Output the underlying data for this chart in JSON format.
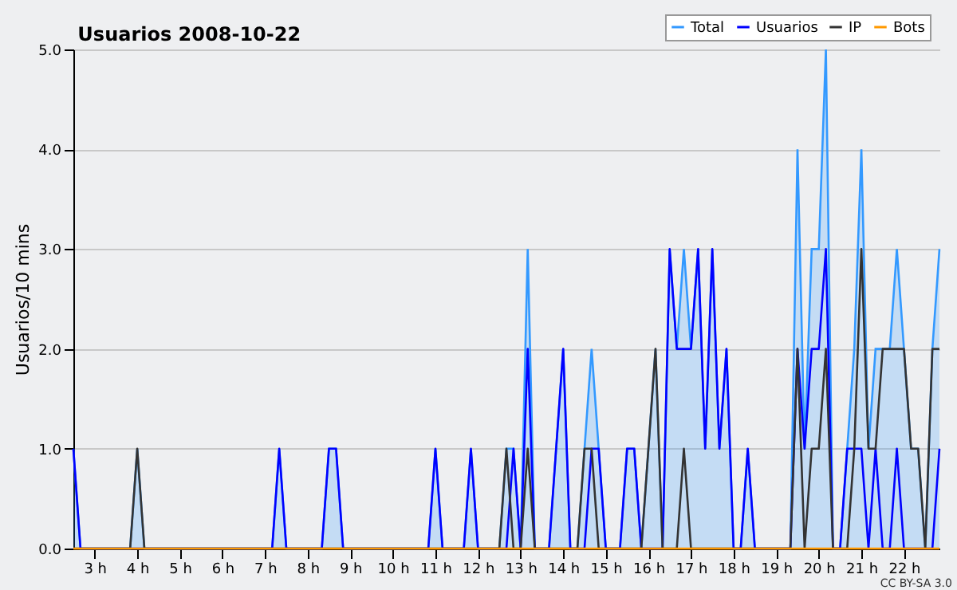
{
  "chart_data": {
    "type": "line",
    "title": "Usuarios 2008-10-22",
    "ylabel": "Usuarios/10 mins",
    "annotations": [
      "CC BY-SA 3.0"
    ],
    "xlim": [
      2.5,
      22.833
    ],
    "xticks": [
      {
        "value": 3,
        "label": "3 h"
      },
      {
        "value": 4,
        "label": "4 h"
      },
      {
        "value": 5,
        "label": "5 h"
      },
      {
        "value": 6,
        "label": "6 h"
      },
      {
        "value": 7,
        "label": "7 h"
      },
      {
        "value": 8,
        "label": "8 h"
      },
      {
        "value": 9,
        "label": "9 h"
      },
      {
        "value": 10,
        "label": "10 h"
      },
      {
        "value": 11,
        "label": "11 h"
      },
      {
        "value": 12,
        "label": "12 h"
      },
      {
        "value": 13,
        "label": "13 h"
      },
      {
        "value": 14,
        "label": "14 h"
      },
      {
        "value": 15,
        "label": "15 h"
      },
      {
        "value": 16,
        "label": "16 h"
      },
      {
        "value": 17,
        "label": "17 h"
      },
      {
        "value": 18,
        "label": "18 h"
      },
      {
        "value": 19,
        "label": "19 h"
      },
      {
        "value": 20,
        "label": "20 h"
      },
      {
        "value": 21,
        "label": "21 h"
      },
      {
        "value": 22,
        "label": "22 h"
      }
    ],
    "ylim": [
      0,
      5
    ],
    "yticks": [
      {
        "value": 0,
        "label": "0.0"
      },
      {
        "value": 1,
        "label": "1.0"
      },
      {
        "value": 2,
        "label": "2.0"
      },
      {
        "value": 3,
        "label": "3.0"
      },
      {
        "value": 4,
        "label": "4.0"
      },
      {
        "value": 5,
        "label": "5.0"
      }
    ],
    "grid": "y",
    "legend": "top right",
    "series": [
      {
        "name": "Total",
        "type": "area",
        "color": "#3399ff",
        "x": [
          2.5,
          2.667,
          3.833,
          4.0,
          4.167,
          7.167,
          7.333,
          7.5,
          8.333,
          8.5,
          8.667,
          8.833,
          10.833,
          11.0,
          11.167,
          11.667,
          11.833,
          12.0,
          12.5,
          12.667,
          12.833,
          13.0,
          13.167,
          13.333,
          13.667,
          14.0,
          14.167,
          14.333,
          14.5,
          14.667,
          14.833,
          15.0,
          15.333,
          15.5,
          15.667,
          15.833,
          16.167,
          16.333,
          16.5,
          16.667,
          16.833,
          17.0,
          17.167,
          17.333,
          17.5,
          17.667,
          17.833,
          18.0,
          18.167,
          18.333,
          18.5,
          19.333,
          19.5,
          19.667,
          19.833,
          20.0,
          20.167,
          20.333,
          20.5,
          20.667,
          20.833,
          21.0,
          21.167,
          21.333,
          21.5,
          21.667,
          21.833,
          22.0,
          22.167,
          22.333,
          22.5,
          22.667,
          22.833
        ],
        "values": [
          1,
          0,
          0,
          1,
          0,
          0,
          1,
          0,
          0,
          1,
          1,
          0,
          0,
          1,
          0,
          0,
          1,
          0,
          0,
          1,
          1,
          0,
          3,
          0,
          0,
          2,
          0,
          0,
          1,
          2,
          1,
          0,
          0,
          1,
          1,
          0,
          2,
          0,
          3,
          2,
          3,
          2,
          3,
          1,
          3,
          1,
          2,
          0,
          0,
          1,
          0,
          0,
          4,
          1,
          3,
          3,
          5,
          0,
          0,
          1,
          2,
          4,
          1,
          2,
          2,
          2,
          3,
          2,
          1,
          1,
          0,
          2,
          3
        ]
      },
      {
        "name": "Usuarios",
        "color": "#0000ff",
        "x": [
          2.5,
          2.667,
          7.167,
          7.333,
          7.5,
          8.333,
          8.5,
          8.667,
          8.833,
          10.833,
          11.0,
          11.167,
          11.667,
          11.833,
          12.0,
          12.667,
          12.833,
          13.0,
          13.167,
          13.333,
          13.667,
          14.0,
          14.167,
          14.5,
          14.667,
          14.833,
          15.0,
          15.333,
          15.5,
          15.667,
          15.833,
          16.333,
          16.5,
          16.667,
          16.833,
          17.0,
          17.167,
          17.333,
          17.5,
          17.667,
          17.833,
          18.0,
          18.167,
          18.333,
          18.5,
          19.333,
          19.5,
          19.667,
          19.833,
          20.0,
          20.167,
          20.333,
          20.5,
          20.667,
          20.833,
          21.0,
          21.167,
          21.333,
          21.5,
          21.667,
          21.833,
          22.0,
          22.667,
          22.833
        ],
        "values": [
          1,
          0,
          0,
          1,
          0,
          0,
          1,
          1,
          0,
          0,
          1,
          0,
          0,
          1,
          0,
          0,
          1,
          0,
          2,
          0,
          0,
          2,
          0,
          0,
          1,
          1,
          0,
          0,
          1,
          1,
          0,
          0,
          3,
          2,
          2,
          2,
          3,
          1,
          3,
          1,
          2,
          0,
          0,
          1,
          0,
          0,
          2,
          1,
          2,
          2,
          3,
          0,
          0,
          1,
          1,
          1,
          0,
          1,
          0,
          0,
          1,
          0,
          0,
          1
        ]
      },
      {
        "name": "IP",
        "color": "#333333",
        "x": [
          2.5,
          3.833,
          4.0,
          4.167,
          12.5,
          12.667,
          12.833,
          13.0,
          13.167,
          13.333,
          14.333,
          14.5,
          14.667,
          14.833,
          15.833,
          16.167,
          16.333,
          16.667,
          16.833,
          17.0,
          19.333,
          19.5,
          19.667,
          19.833,
          20.0,
          20.167,
          20.333,
          20.667,
          20.833,
          21.0,
          21.167,
          21.333,
          21.5,
          21.667,
          21.833,
          22.0,
          22.167,
          22.333,
          22.5,
          22.667,
          22.833
        ],
        "values": [
          0,
          0,
          1,
          0,
          0,
          1,
          0,
          0,
          1,
          0,
          0,
          1,
          1,
          0,
          0,
          2,
          0,
          0,
          1,
          0,
          0,
          2,
          0,
          1,
          1,
          2,
          0,
          0,
          1,
          3,
          1,
          1,
          2,
          2,
          2,
          2,
          1,
          1,
          0,
          2,
          2
        ]
      },
      {
        "name": "Bots",
        "color": "#ff9900",
        "x": [
          2.5,
          22.833
        ],
        "values": [
          0,
          0
        ]
      }
    ]
  }
}
